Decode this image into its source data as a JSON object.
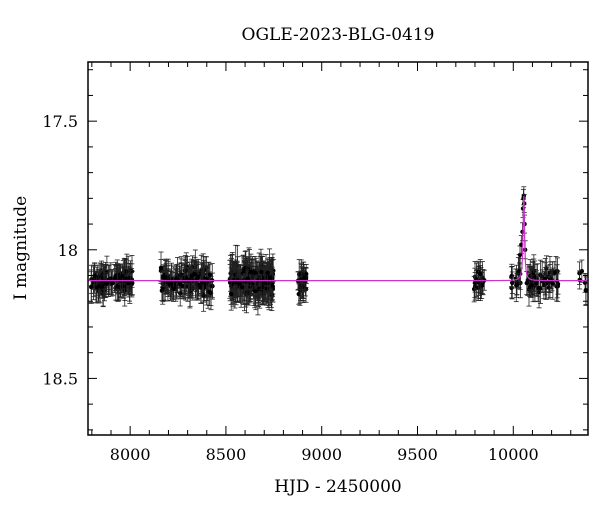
{
  "chart_data": {
    "type": "scatter",
    "title": "OGLE-2023-BLG-0419",
    "xlabel": "HJD - 2450000",
    "ylabel": "I magnitude",
    "xlim": [
      7780,
      10390
    ],
    "ylim": [
      18.72,
      17.27
    ],
    "y_inverted": true,
    "grid": false,
    "x_ticks": [
      {
        "value": 8000,
        "label": "8000"
      },
      {
        "value": 8500,
        "label": "8500"
      },
      {
        "value": 9000,
        "label": "9000"
      },
      {
        "value": 9500,
        "label": "9500"
      },
      {
        "value": 10000,
        "label": "10000"
      }
    ],
    "y_ticks": [
      {
        "value": 17.5,
        "label": "17.5"
      },
      {
        "value": 18,
        "label": "18"
      },
      {
        "value": 18.5,
        "label": "18.5"
      }
    ],
    "baseline_magnitude": 18.12,
    "model_color": "#cc33cc",
    "point_color": "#000000",
    "model_curve": {
      "peak_time": 10055,
      "peak_magnitude": 17.79,
      "timescale_days": 6,
      "baseline": 18.12
    },
    "observing_seasons": [
      {
        "start": 7795,
        "end": 8015,
        "count": 110,
        "scatter": 0.04,
        "error": 0.05
      },
      {
        "start": 8160,
        "end": 8430,
        "count": 140,
        "scatter": 0.045,
        "error": 0.055
      },
      {
        "start": 8520,
        "end": 8750,
        "count": 200,
        "scatter": 0.05,
        "error": 0.06
      },
      {
        "start": 8875,
        "end": 8920,
        "count": 30,
        "scatter": 0.045,
        "error": 0.05
      },
      {
        "start": 9790,
        "end": 9850,
        "count": 22,
        "scatter": 0.04,
        "error": 0.05
      },
      {
        "start": 9990,
        "end": 10040,
        "count": 15,
        "scatter": 0.04,
        "error": 0.05
      },
      {
        "start": 10070,
        "end": 10240,
        "count": 55,
        "scatter": 0.04,
        "error": 0.05
      },
      {
        "start": 10340,
        "end": 10380,
        "count": 6,
        "scatter": 0.04,
        "error": 0.05
      }
    ],
    "peak_points": [
      {
        "x": 10035,
        "y": 18.02
      },
      {
        "x": 10042,
        "y": 17.98
      },
      {
        "x": 10048,
        "y": 17.93
      },
      {
        "x": 10051,
        "y": 17.84
      },
      {
        "x": 10053,
        "y": 17.8
      },
      {
        "x": 10055,
        "y": 17.79
      },
      {
        "x": 10057,
        "y": 17.82
      },
      {
        "x": 10059,
        "y": 17.9
      },
      {
        "x": 10062,
        "y": 18.0
      }
    ]
  }
}
